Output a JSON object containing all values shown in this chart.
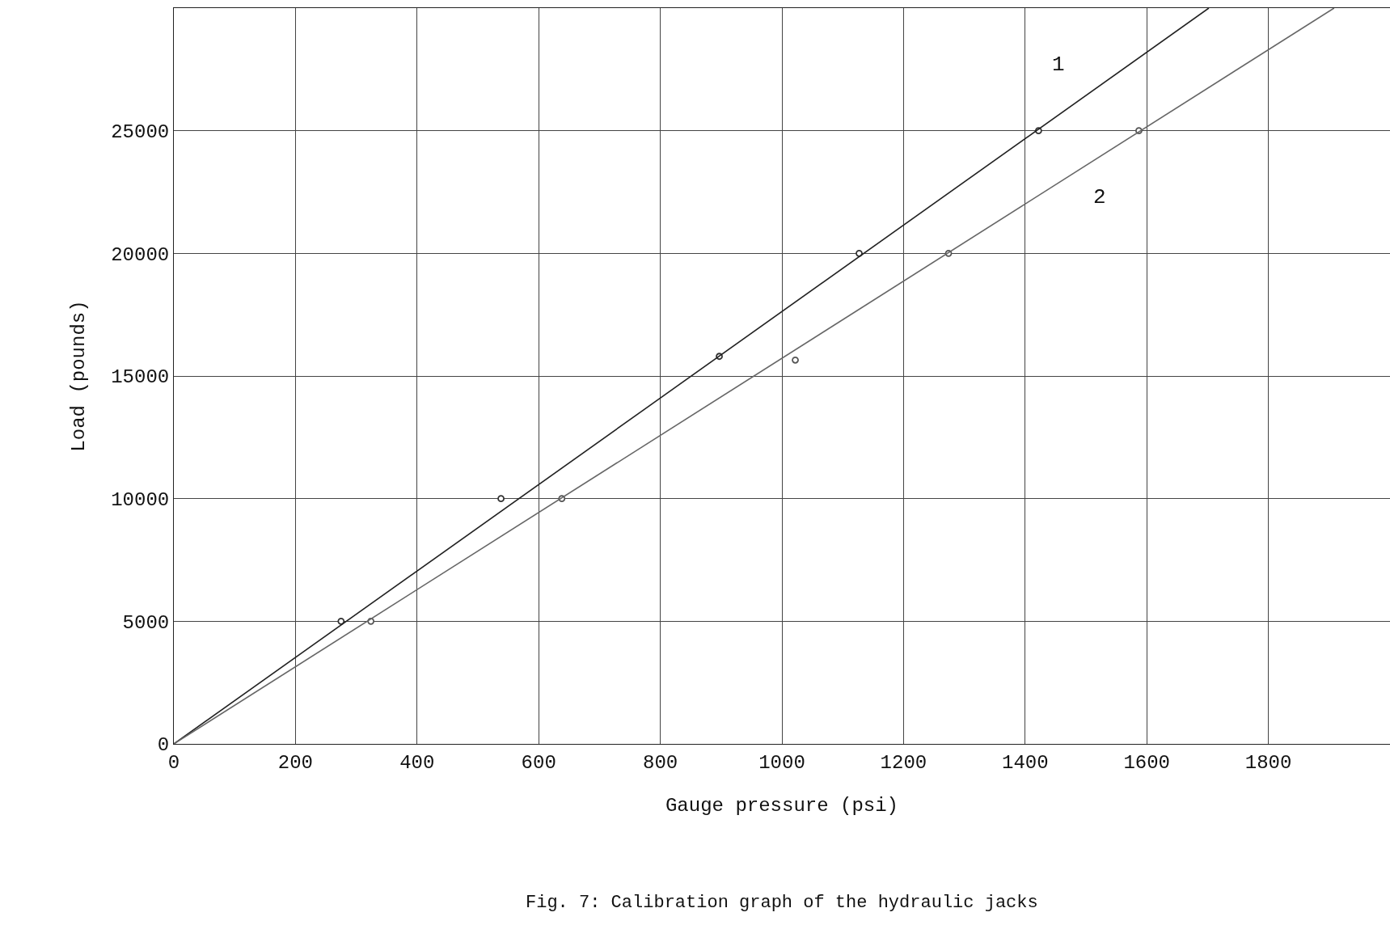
{
  "chart_data": {
    "type": "scatter",
    "xlabel": "Gauge pressure (psi)",
    "ylabel": "Load (pounds)",
    "xlim": [
      0,
      2000
    ],
    "ylim": [
      0,
      30000
    ],
    "xticks": [
      0,
      200,
      400,
      600,
      800,
      1000,
      1200,
      1400,
      1600,
      1800
    ],
    "yticks": [
      0,
      5000,
      10000,
      15000,
      20000,
      25000
    ],
    "grid": true,
    "legend": false,
    "series": [
      {
        "type": "scatter",
        "color": "#333333",
        "marker": "circle",
        "x": [
          275,
          538,
          897,
          1127,
          1422
        ],
        "values": [
          5000,
          10000,
          15800,
          20000,
          25000
        ]
      },
      {
        "type": "scatter",
        "color": "#555555",
        "marker": "circle",
        "x": [
          324,
          638,
          1022,
          1274,
          1587
        ],
        "values": [
          5000,
          10000,
          15650,
          20000,
          25000
        ]
      },
      {
        "type": "line",
        "name": "1",
        "color": "#222222",
        "marker": "none",
        "line_style": "solid",
        "x": [
          0,
          1702
        ],
        "values": [
          0,
          30000
        ]
      },
      {
        "type": "line",
        "name": "2",
        "color": "#666666",
        "marker": "none",
        "line_style": "solid",
        "x": [
          0,
          1908
        ],
        "values": [
          0,
          30000
        ]
      }
    ],
    "annotations": [
      "Fig. 7: Calibration graph of the hydraulic jacks"
    ]
  }
}
